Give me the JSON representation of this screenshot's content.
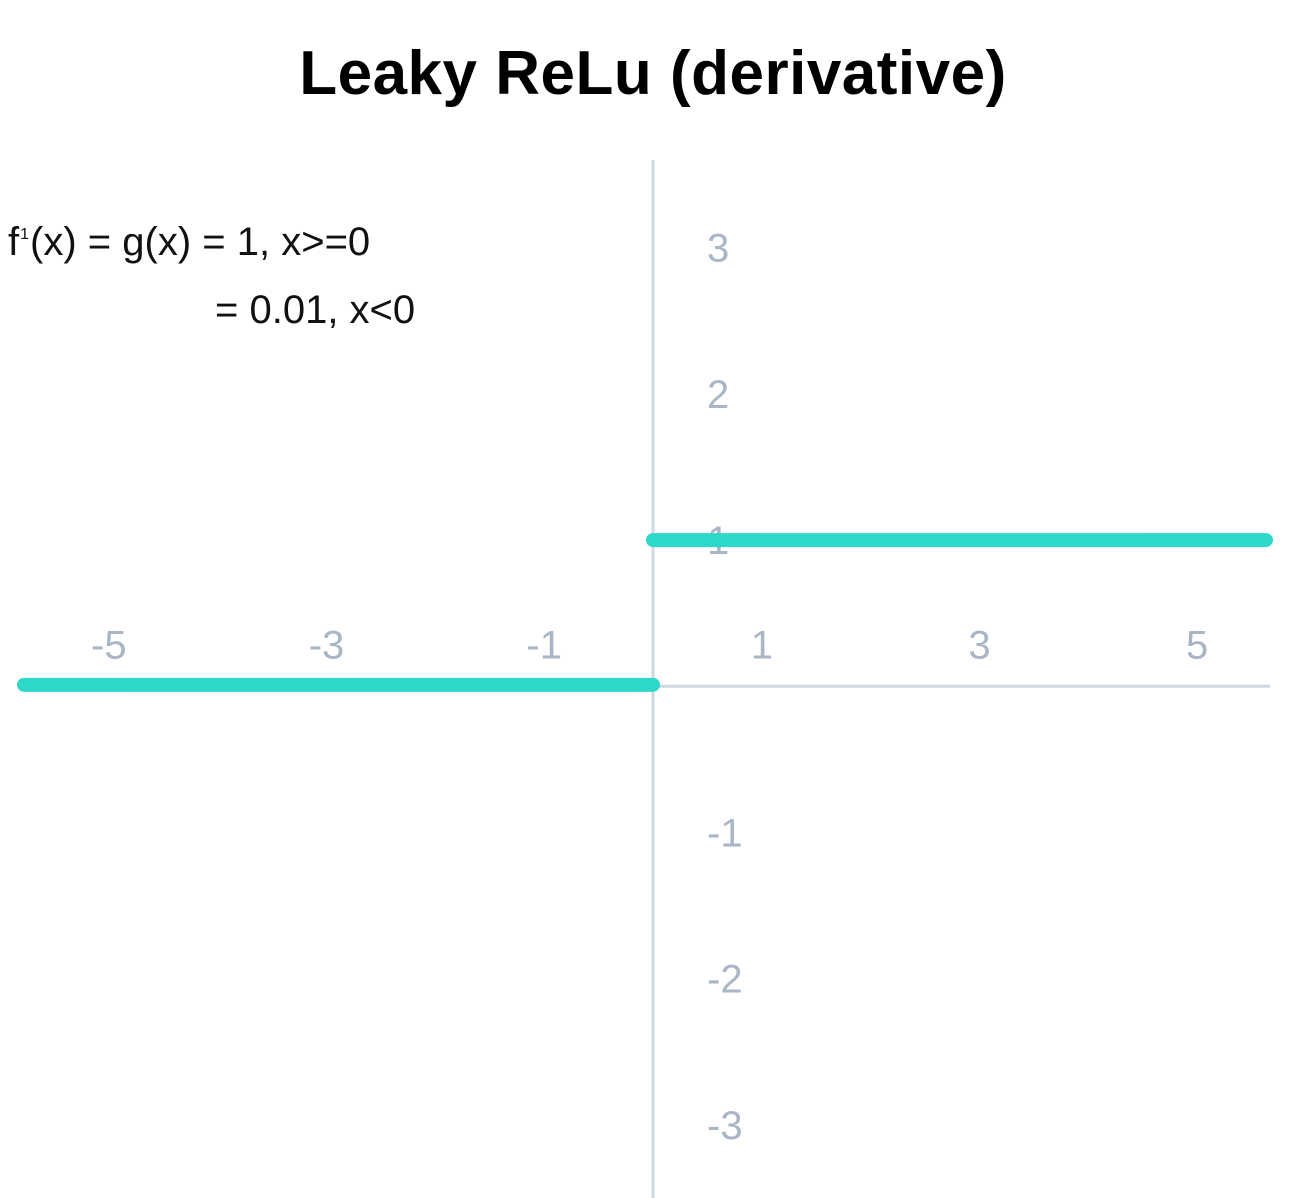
{
  "chart_data": {
    "type": "line",
    "title": "Leaky ReLu (derivative)",
    "formula": {
      "fprime": "f",
      "prime_mark": "1",
      "rest_1": "(x) = g(x) = 1, x>=0",
      "line_2": "= 0.01, x<0"
    },
    "xlim": [
      -6,
      6
    ],
    "ylim": [
      -3.5,
      3.6
    ],
    "x_ticks": [
      -5,
      -3,
      -1,
      1,
      3,
      5
    ],
    "y_ticks": [
      3,
      2,
      1,
      -1,
      -2,
      -3
    ],
    "grid": false,
    "series": [
      {
        "segments": [
          {
            "x": [
              -6,
              0
            ],
            "y": [
              0.01,
              0.01
            ]
          },
          {
            "x": [
              0,
              6
            ],
            "y": [
              1,
              1
            ]
          }
        ]
      }
    ],
    "colors": {
      "line": "#2ed8c9",
      "axis": "#cfd9e3",
      "tick_text": "#a9b6c6",
      "title": "#000000"
    }
  }
}
